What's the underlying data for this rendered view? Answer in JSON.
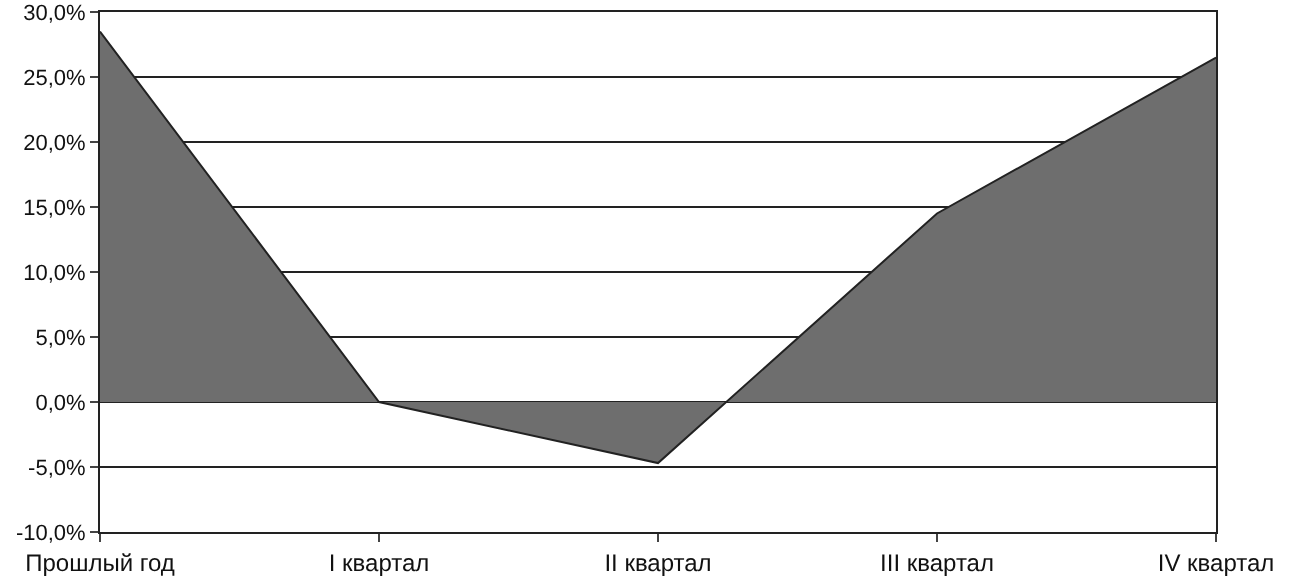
{
  "chart_data": {
    "type": "area",
    "categories": [
      "Прошлый год",
      "I квартал",
      "II квартал",
      "III квартал",
      "IV квартал"
    ],
    "series": [
      {
        "color": "#6e6e6e",
        "values": [
          28.5,
          0,
          -4.7,
          14.5,
          26.5
        ]
      }
    ],
    "ylim": [
      -10,
      30
    ],
    "yticks": [
      {
        "value": -10,
        "label": "-10,0%"
      },
      {
        "value": -5,
        "label": "-5,0%"
      },
      {
        "value": 0,
        "label": "0,0%"
      },
      {
        "value": 5,
        "label": "5,0%"
      },
      {
        "value": 10,
        "label": "10,0%"
      },
      {
        "value": 15,
        "label": "15,0%"
      },
      {
        "value": 20,
        "label": "20,0%"
      },
      {
        "value": 25,
        "label": "25,0%"
      },
      {
        "value": 30,
        "label": "30,0%"
      }
    ],
    "grid": "y"
  }
}
